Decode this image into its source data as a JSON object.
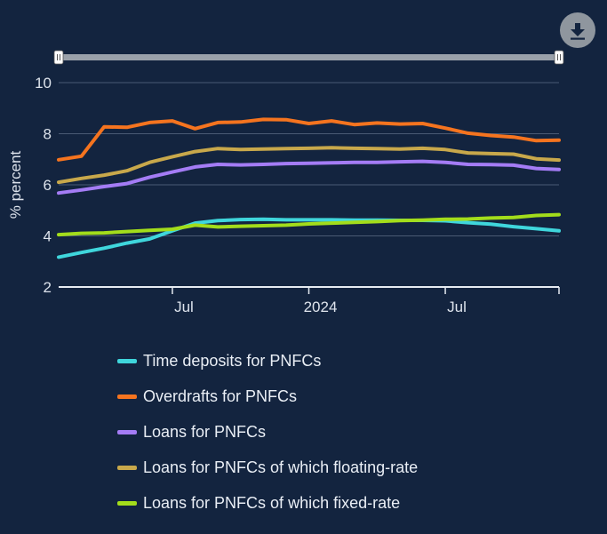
{
  "chart_data": {
    "type": "line",
    "ylabel": "% percent",
    "ylim": [
      2,
      10
    ],
    "yticks": [
      2,
      4,
      6,
      8,
      10
    ],
    "x_start": "2023-02",
    "x_end": "2024-12",
    "x": [
      "2023-02",
      "2023-03",
      "2023-04",
      "2023-05",
      "2023-06",
      "2023-07",
      "2023-08",
      "2023-09",
      "2023-10",
      "2023-11",
      "2023-12",
      "2024-01",
      "2024-02",
      "2024-03",
      "2024-04",
      "2024-05",
      "2024-06",
      "2024-07",
      "2024-08",
      "2024-09",
      "2024-10",
      "2024-11",
      "2024-12"
    ],
    "xticks": [
      {
        "date": "2023-07",
        "label": "Jul"
      },
      {
        "date": "2024-01",
        "label": "2024"
      },
      {
        "date": "2024-07",
        "label": "Jul"
      }
    ],
    "grid": true,
    "legend_position": "bottom",
    "series": [
      {
        "name": "Time deposits for PNFCs",
        "color": "#3fd6dc",
        "values": [
          3.17,
          3.35,
          3.52,
          3.72,
          3.88,
          4.2,
          4.5,
          4.6,
          4.64,
          4.65,
          4.63,
          4.63,
          4.63,
          4.62,
          4.62,
          4.61,
          4.61,
          4.59,
          4.52,
          4.46,
          4.36,
          4.28,
          4.2
        ]
      },
      {
        "name": "Overdrafts for PNFCs",
        "color": "#f5741f",
        "values": [
          6.98,
          7.12,
          8.27,
          8.25,
          8.44,
          8.5,
          8.2,
          8.44,
          8.46,
          8.56,
          8.55,
          8.4,
          8.5,
          8.36,
          8.42,
          8.38,
          8.4,
          8.22,
          8.02,
          7.93,
          7.87,
          7.73,
          7.75
        ]
      },
      {
        "name": "Loans for PNFCs",
        "color": "#a47cf5",
        "values": [
          5.68,
          5.8,
          5.93,
          6.05,
          6.3,
          6.5,
          6.7,
          6.8,
          6.78,
          6.8,
          6.83,
          6.84,
          6.86,
          6.88,
          6.88,
          6.9,
          6.92,
          6.88,
          6.8,
          6.79,
          6.77,
          6.64,
          6.6
        ]
      },
      {
        "name": "Loans for PNFCs of which floating-rate",
        "color": "#c8a84b",
        "values": [
          6.1,
          6.25,
          6.38,
          6.55,
          6.88,
          7.1,
          7.3,
          7.42,
          7.38,
          7.4,
          7.42,
          7.43,
          7.45,
          7.43,
          7.42,
          7.4,
          7.43,
          7.38,
          7.25,
          7.22,
          7.2,
          7.02,
          6.97
        ]
      },
      {
        "name": "Loans for PNFCs of which fixed-rate",
        "color": "#a3dd1b",
        "values": [
          4.05,
          4.1,
          4.12,
          4.17,
          4.22,
          4.26,
          4.42,
          4.35,
          4.38,
          4.4,
          4.42,
          4.47,
          4.5,
          4.53,
          4.56,
          4.6,
          4.62,
          4.65,
          4.66,
          4.7,
          4.72,
          4.8,
          4.83
        ]
      }
    ]
  },
  "toolbar": {
    "download_icon": "download-icon"
  }
}
